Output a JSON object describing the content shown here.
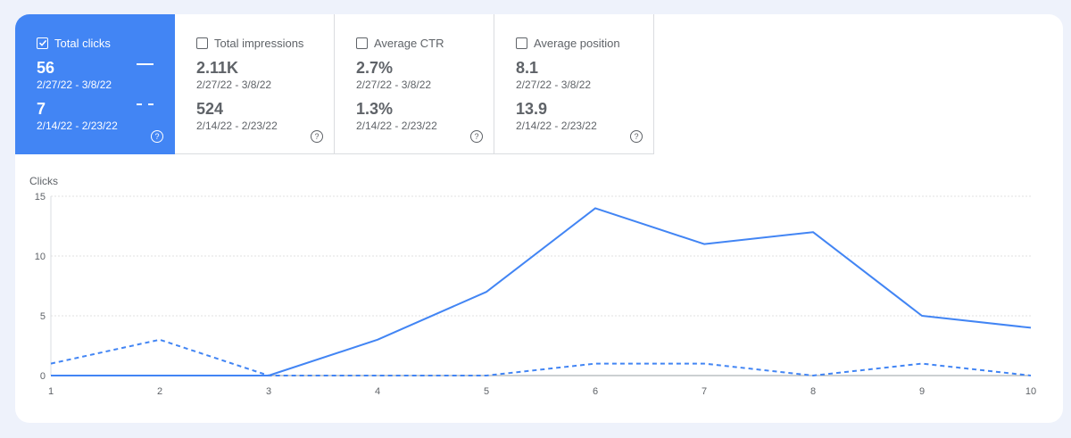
{
  "metrics": [
    {
      "label": "Total clicks",
      "checked": true,
      "current_value": "56",
      "current_range": "2/27/22 - 3/8/22",
      "previous_value": "7",
      "previous_range": "2/14/22 - 2/23/22"
    },
    {
      "label": "Total impressions",
      "checked": false,
      "current_value": "2.11K",
      "current_range": "2/27/22 - 3/8/22",
      "previous_value": "524",
      "previous_range": "2/14/22 - 2/23/22"
    },
    {
      "label": "Average CTR",
      "checked": false,
      "current_value": "2.7%",
      "current_range": "2/27/22 - 3/8/22",
      "previous_value": "1.3%",
      "previous_range": "2/14/22 - 2/23/22"
    },
    {
      "label": "Average position",
      "checked": false,
      "current_value": "8.1",
      "current_range": "2/27/22 - 3/8/22",
      "previous_value": "13.9",
      "previous_range": "2/14/22 - 2/23/22"
    }
  ],
  "help_glyph": "?",
  "colors": {
    "accent": "#4285f4",
    "grid": "#e0e0e0",
    "text": "#5f6368"
  },
  "chart_data": {
    "type": "line",
    "ylabel": "Clicks",
    "x": [
      1,
      2,
      3,
      4,
      5,
      6,
      7,
      8,
      9,
      10
    ],
    "ylim": [
      0,
      15
    ],
    "yticks": [
      0,
      5,
      10,
      15
    ],
    "grid": true,
    "series": [
      {
        "style": "solid",
        "values": [
          0,
          0,
          0,
          3,
          7,
          14,
          11,
          12,
          5,
          4
        ]
      },
      {
        "style": "dashed",
        "values": [
          1,
          3,
          0,
          0,
          0,
          1,
          1,
          0,
          1,
          0
        ]
      }
    ]
  }
}
